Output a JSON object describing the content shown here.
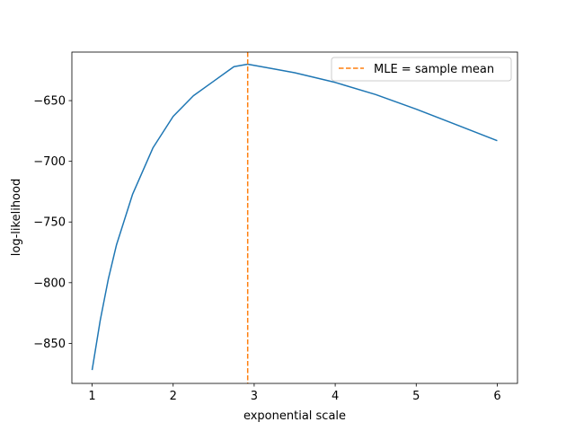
{
  "chart_data": {
    "type": "line",
    "xlabel": "exponential scale",
    "ylabel": "log-likelihood",
    "xlim": [
      0.75,
      6.25
    ],
    "ylim": [
      -883,
      -610
    ],
    "xticks": [
      1,
      2,
      3,
      4,
      5,
      6
    ],
    "yticks": [
      -850,
      -800,
      -750,
      -700,
      -650
    ],
    "xtick_labels": [
      "1",
      "2",
      "3",
      "4",
      "5",
      "6"
    ],
    "ytick_labels": [
      "−850",
      "−800",
      "−750",
      "−700",
      "−650"
    ],
    "grid": false,
    "legend_position": "upper right",
    "series": [
      {
        "color": "#1f77b4",
        "style": "solid",
        "x": [
          1.0,
          1.1,
          1.2,
          1.3,
          1.5,
          1.75,
          2.0,
          2.25,
          2.5,
          2.75,
          2.92,
          3.25,
          3.5,
          4.0,
          4.5,
          5.0,
          5.5,
          6.0
        ],
        "y": [
          -872,
          -831,
          -797,
          -769,
          -727,
          -689,
          -663,
          -646,
          -634,
          -622,
          -620,
          -624,
          -627,
          -635,
          -645,
          -657,
          -670,
          -683
        ]
      }
    ],
    "vlines": [
      {
        "name": "MLE = sample mean",
        "x": 2.92,
        "color": "#ff7f0e",
        "style": "dashed"
      }
    ]
  }
}
